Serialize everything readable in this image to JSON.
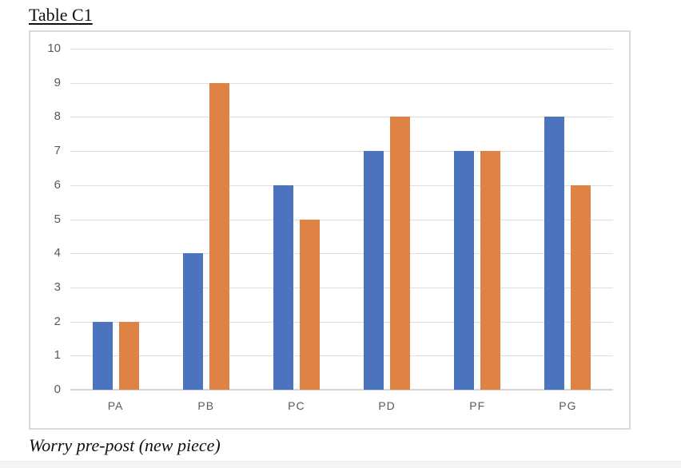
{
  "page": {
    "title": "Table C1",
    "caption": "Worry pre-post (new piece)"
  },
  "chart_data": {
    "type": "bar",
    "title": "Table C1",
    "caption": "Worry pre-post (new piece)",
    "categories": [
      "PA",
      "PB",
      "PC",
      "PD",
      "PF",
      "PG"
    ],
    "series": [
      {
        "name": "series1",
        "color": "#4c73bd",
        "values": [
          2,
          4,
          6,
          7,
          7,
          8
        ]
      },
      {
        "name": "series2",
        "color": "#df8245",
        "values": [
          2,
          9,
          5,
          8,
          7,
          6
        ]
      }
    ],
    "xlabel": "",
    "ylabel": "",
    "ylim": [
      0,
      10
    ],
    "ytick_step": 1,
    "yticks": [
      0,
      1,
      2,
      3,
      4,
      5,
      6,
      7,
      8,
      9,
      10
    ],
    "grid": "horizontal",
    "legend": "none",
    "colors": {
      "gridline": "#dedede",
      "axis_line": "#d4d4d4",
      "tick_label": "#595959",
      "frame_border": "#d9d9d9",
      "background": "#ffffff"
    }
  }
}
